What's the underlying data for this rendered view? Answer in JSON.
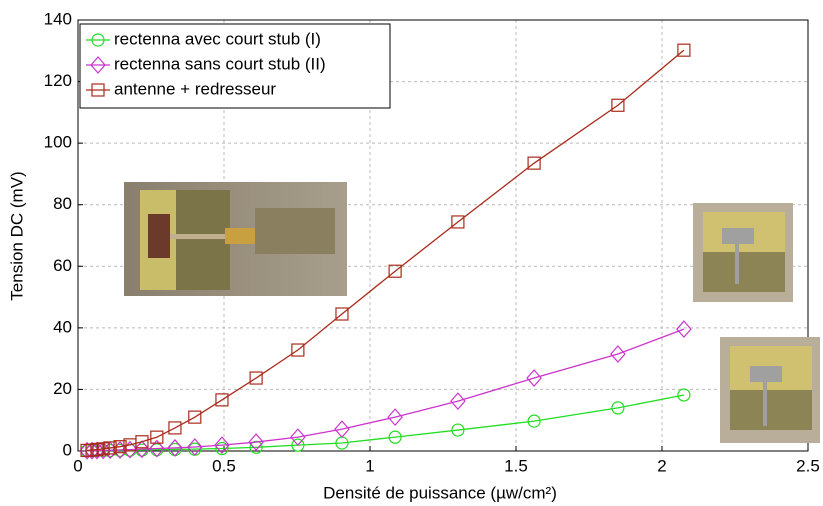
{
  "chart_data": {
    "type": "line",
    "xlabel": "Densité de puissance (µw/cm²)",
    "ylabel": "Tension DC (mV)",
    "x": [
      0.031,
      0.048,
      0.065,
      0.086,
      0.11,
      0.144,
      0.178,
      0.219,
      0.27,
      0.332,
      0.4,
      0.493,
      0.61,
      0.753,
      0.904,
      1.086,
      1.301,
      1.562,
      1.849,
      2.075
    ],
    "series": [
      {
        "name": "rectenna avec court stub (I)",
        "color": "#22dd22",
        "marker": "circle",
        "values": [
          0.05,
          0.07,
          0.1,
          0.12,
          0.15,
          0.2,
          0.25,
          0.3,
          0.4,
          0.5,
          0.6,
          0.8,
          1.2,
          1.9,
          2.6,
          4.5,
          6.8,
          9.7,
          14,
          18.2
        ]
      },
      {
        "name": "rectenna sans court stub (II)",
        "color": "#cc33cc",
        "marker": "diamond",
        "values": [
          0.08,
          0.1,
          0.15,
          0.2,
          0.25,
          0.35,
          0.45,
          0.6,
          0.8,
          1.0,
          1.3,
          1.9,
          2.9,
          4.5,
          7.1,
          11,
          16.2,
          23.7,
          31.5,
          39.6
        ]
      },
      {
        "name": "antenne + redresseur",
        "color": "#aa2a1a",
        "marker": "square",
        "values": [
          0.2,
          0.3,
          0.5,
          0.7,
          1.0,
          1.4,
          2.0,
          3.0,
          4.5,
          7.5,
          11,
          16.6,
          23.7,
          32.8,
          44.5,
          58.4,
          74.4,
          93.5,
          112.3,
          130.2
        ]
      }
    ],
    "xlim": [
      0,
      2.5
    ],
    "xticks": [
      0,
      0.5,
      1,
      1.5,
      2,
      2.5
    ],
    "ylim": [
      0,
      140
    ],
    "yticks": [
      0,
      20,
      40,
      60,
      80,
      100,
      120,
      140
    ],
    "grid": true,
    "legend": "upper left"
  }
}
